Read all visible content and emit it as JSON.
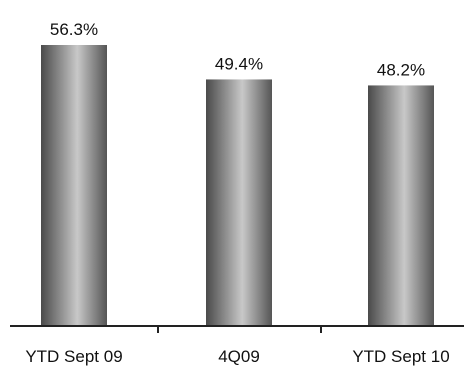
{
  "chart_data": {
    "type": "bar",
    "categories": [
      "YTD Sept 09",
      "4Q09",
      "YTD Sept 10"
    ],
    "values": [
      56.3,
      49.4,
      48.2
    ],
    "data_labels": [
      "56.3%",
      "49.4%",
      "48.2%"
    ],
    "title": "",
    "xlabel": "",
    "ylabel": "",
    "ylim": [
      0,
      56.3
    ],
    "grid": false,
    "legend": "none",
    "colors": {
      "bar_dark": "#505050",
      "bar_light": "#c4c4c4",
      "axis": "#222222"
    }
  }
}
